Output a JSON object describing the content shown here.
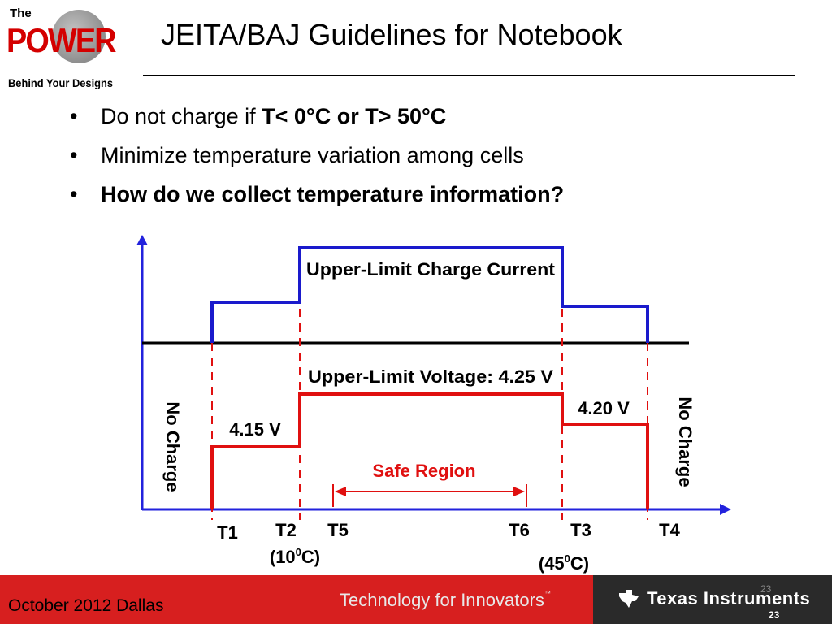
{
  "logo": {
    "line1": "The",
    "line2": "POWER",
    "line3": "Behind Your Designs"
  },
  "title": "JEITA/BAJ Guidelines for Notebook",
  "bullets": [
    {
      "normal": "Do not charge if ",
      "bold": "T< 0°C or T> 50°C"
    },
    {
      "normal": "Minimize temperature variation among cells",
      "bold": ""
    },
    {
      "normal": "",
      "bold": "How do we collect temperature information?"
    }
  ],
  "diagram": {
    "current_label": "Upper-Limit Charge Current",
    "voltage_label": "Upper-Limit Voltage: 4.25 V",
    "v_low_left": "4.15 V",
    "v_low_right": "4.20 V",
    "no_charge_left": "No Charge",
    "no_charge_right": "No Charge",
    "safe_region": "Safe Region",
    "ticks": {
      "t1": "T1",
      "t2": "T2",
      "t5": "T5",
      "t6": "T6",
      "t3": "T3",
      "t4": "T4"
    },
    "temp_t2": {
      "open": "(10",
      "sup": "0",
      "close": "C)"
    },
    "temp_t3": {
      "open": "(45",
      "sup": "0",
      "close": "C)"
    },
    "colors": {
      "current": "#1a1acc",
      "voltage": "#e01010",
      "axis": "#2222dd",
      "safe": "#e01010"
    }
  },
  "footer": {
    "date": "October 2012  Dallas",
    "tagline": "Technology for Innovators",
    "tm": "™",
    "company": "Texas Instruments",
    "page_faint": "23",
    "page": "23"
  }
}
